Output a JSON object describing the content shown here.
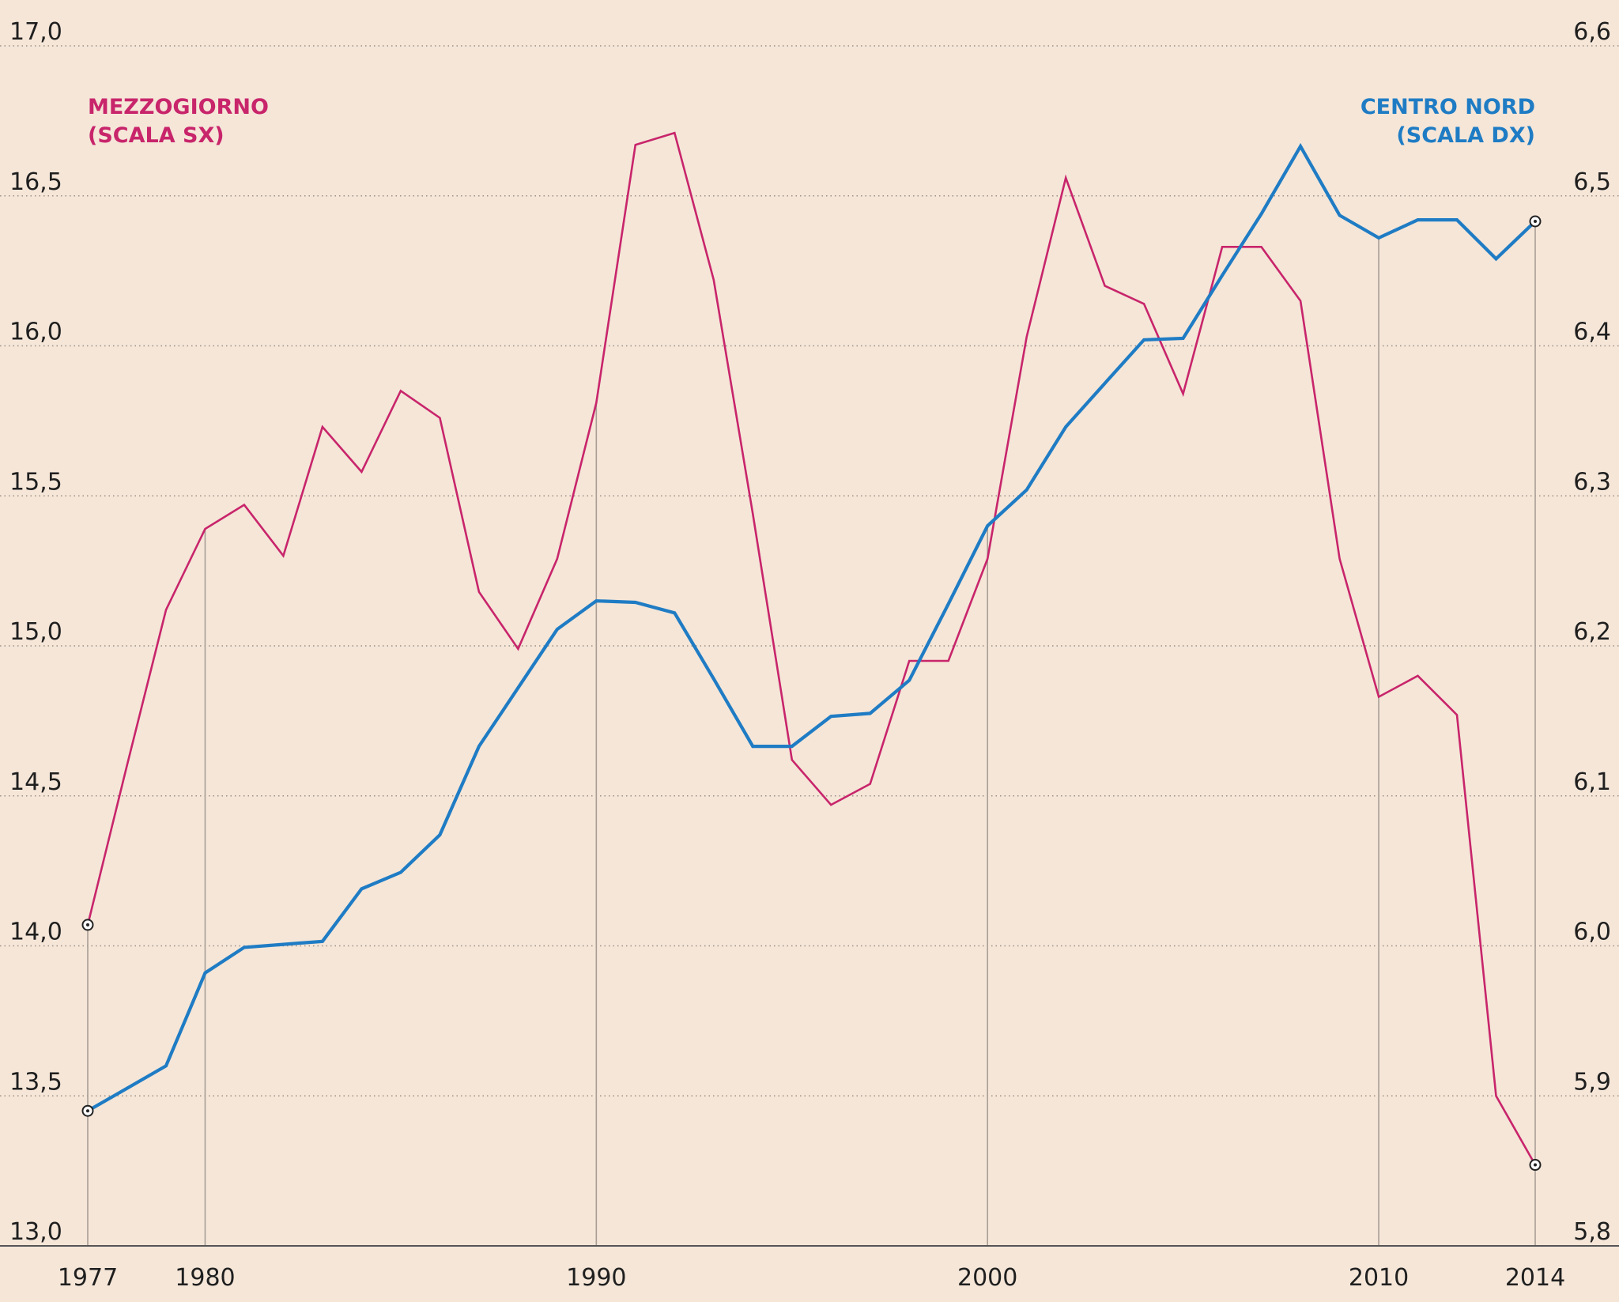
{
  "chart_data": {
    "type": "line",
    "title": "",
    "xlabel": "",
    "ylabel": "",
    "x_ticks": [
      "1977",
      "1980",
      "1990",
      "2000",
      "2010",
      "2014"
    ],
    "y_left_ticks": [
      "13,0",
      "13,5",
      "14,0",
      "14,5",
      "15,0",
      "15,5",
      "16,0",
      "16,5",
      "17,0"
    ],
    "y_right_ticks": [
      "5,8",
      "5,9",
      "6,0",
      "6,1",
      "6,2",
      "6,3",
      "6,4",
      "6,5",
      "6,6"
    ],
    "ylim_left": [
      13.0,
      17.0
    ],
    "ylim_right": [
      5.8,
      6.6
    ],
    "xlim": [
      1977,
      2014
    ],
    "grid": "horizontal dotted",
    "colors": {
      "background": "#f5e6d8",
      "mezzogiorno": "#c8256b",
      "centro_nord": "#1f7cc4",
      "grid": "#9a8f86",
      "axis": "#555555"
    },
    "series": [
      {
        "name": "MEZZOGIORNO",
        "scale_note": "(SCALA SX)",
        "axis": "left",
        "x": [
          1977,
          1978,
          1979,
          1980,
          1981,
          1982,
          1983,
          1984,
          1985,
          1986,
          1987,
          1988,
          1989,
          1990,
          1991,
          1992,
          1993,
          1994,
          1995,
          1996,
          1997,
          1998,
          1999,
          2000,
          2001,
          2002,
          2003,
          2004,
          2005,
          2006,
          2007,
          2008,
          2009,
          2010,
          2011,
          2012,
          2013,
          2014
        ],
        "values": [
          14.07,
          14.6,
          15.12,
          15.39,
          15.47,
          15.3,
          15.73,
          15.58,
          15.85,
          15.76,
          15.18,
          14.99,
          15.29,
          15.81,
          16.67,
          16.71,
          16.22,
          15.44,
          14.62,
          14.47,
          14.54,
          14.95,
          14.95,
          15.29,
          16.03,
          16.56,
          16.2,
          16.14,
          15.84,
          16.33,
          16.33,
          16.15,
          15.29,
          14.83,
          14.9,
          14.77,
          13.5,
          13.27
        ]
      },
      {
        "name": "CENTRO NORD",
        "scale_note": "(SCALA DX)",
        "axis": "right",
        "x": [
          1977,
          1978,
          1979,
          1980,
          1981,
          1982,
          1983,
          1984,
          1985,
          1986,
          1987,
          1988,
          1989,
          1990,
          1991,
          1992,
          1993,
          1994,
          1995,
          1996,
          1997,
          1998,
          1999,
          2000,
          2001,
          2002,
          2003,
          2004,
          2005,
          2006,
          2007,
          2008,
          2009,
          2010,
          2011,
          2012,
          2013,
          2014
        ],
        "values": [
          5.89,
          5.905,
          5.92,
          5.982,
          5.999,
          6.001,
          6.003,
          6.038,
          6.049,
          6.074,
          6.133,
          6.172,
          6.211,
          6.23,
          6.229,
          6.222,
          6.178,
          6.133,
          6.133,
          6.153,
          6.155,
          6.177,
          6.228,
          6.28,
          6.304,
          6.346,
          6.375,
          6.404,
          6.405,
          6.447,
          6.488,
          6.533,
          6.487,
          6.472,
          6.484,
          6.484,
          6.458,
          6.483
        ]
      }
    ]
  }
}
